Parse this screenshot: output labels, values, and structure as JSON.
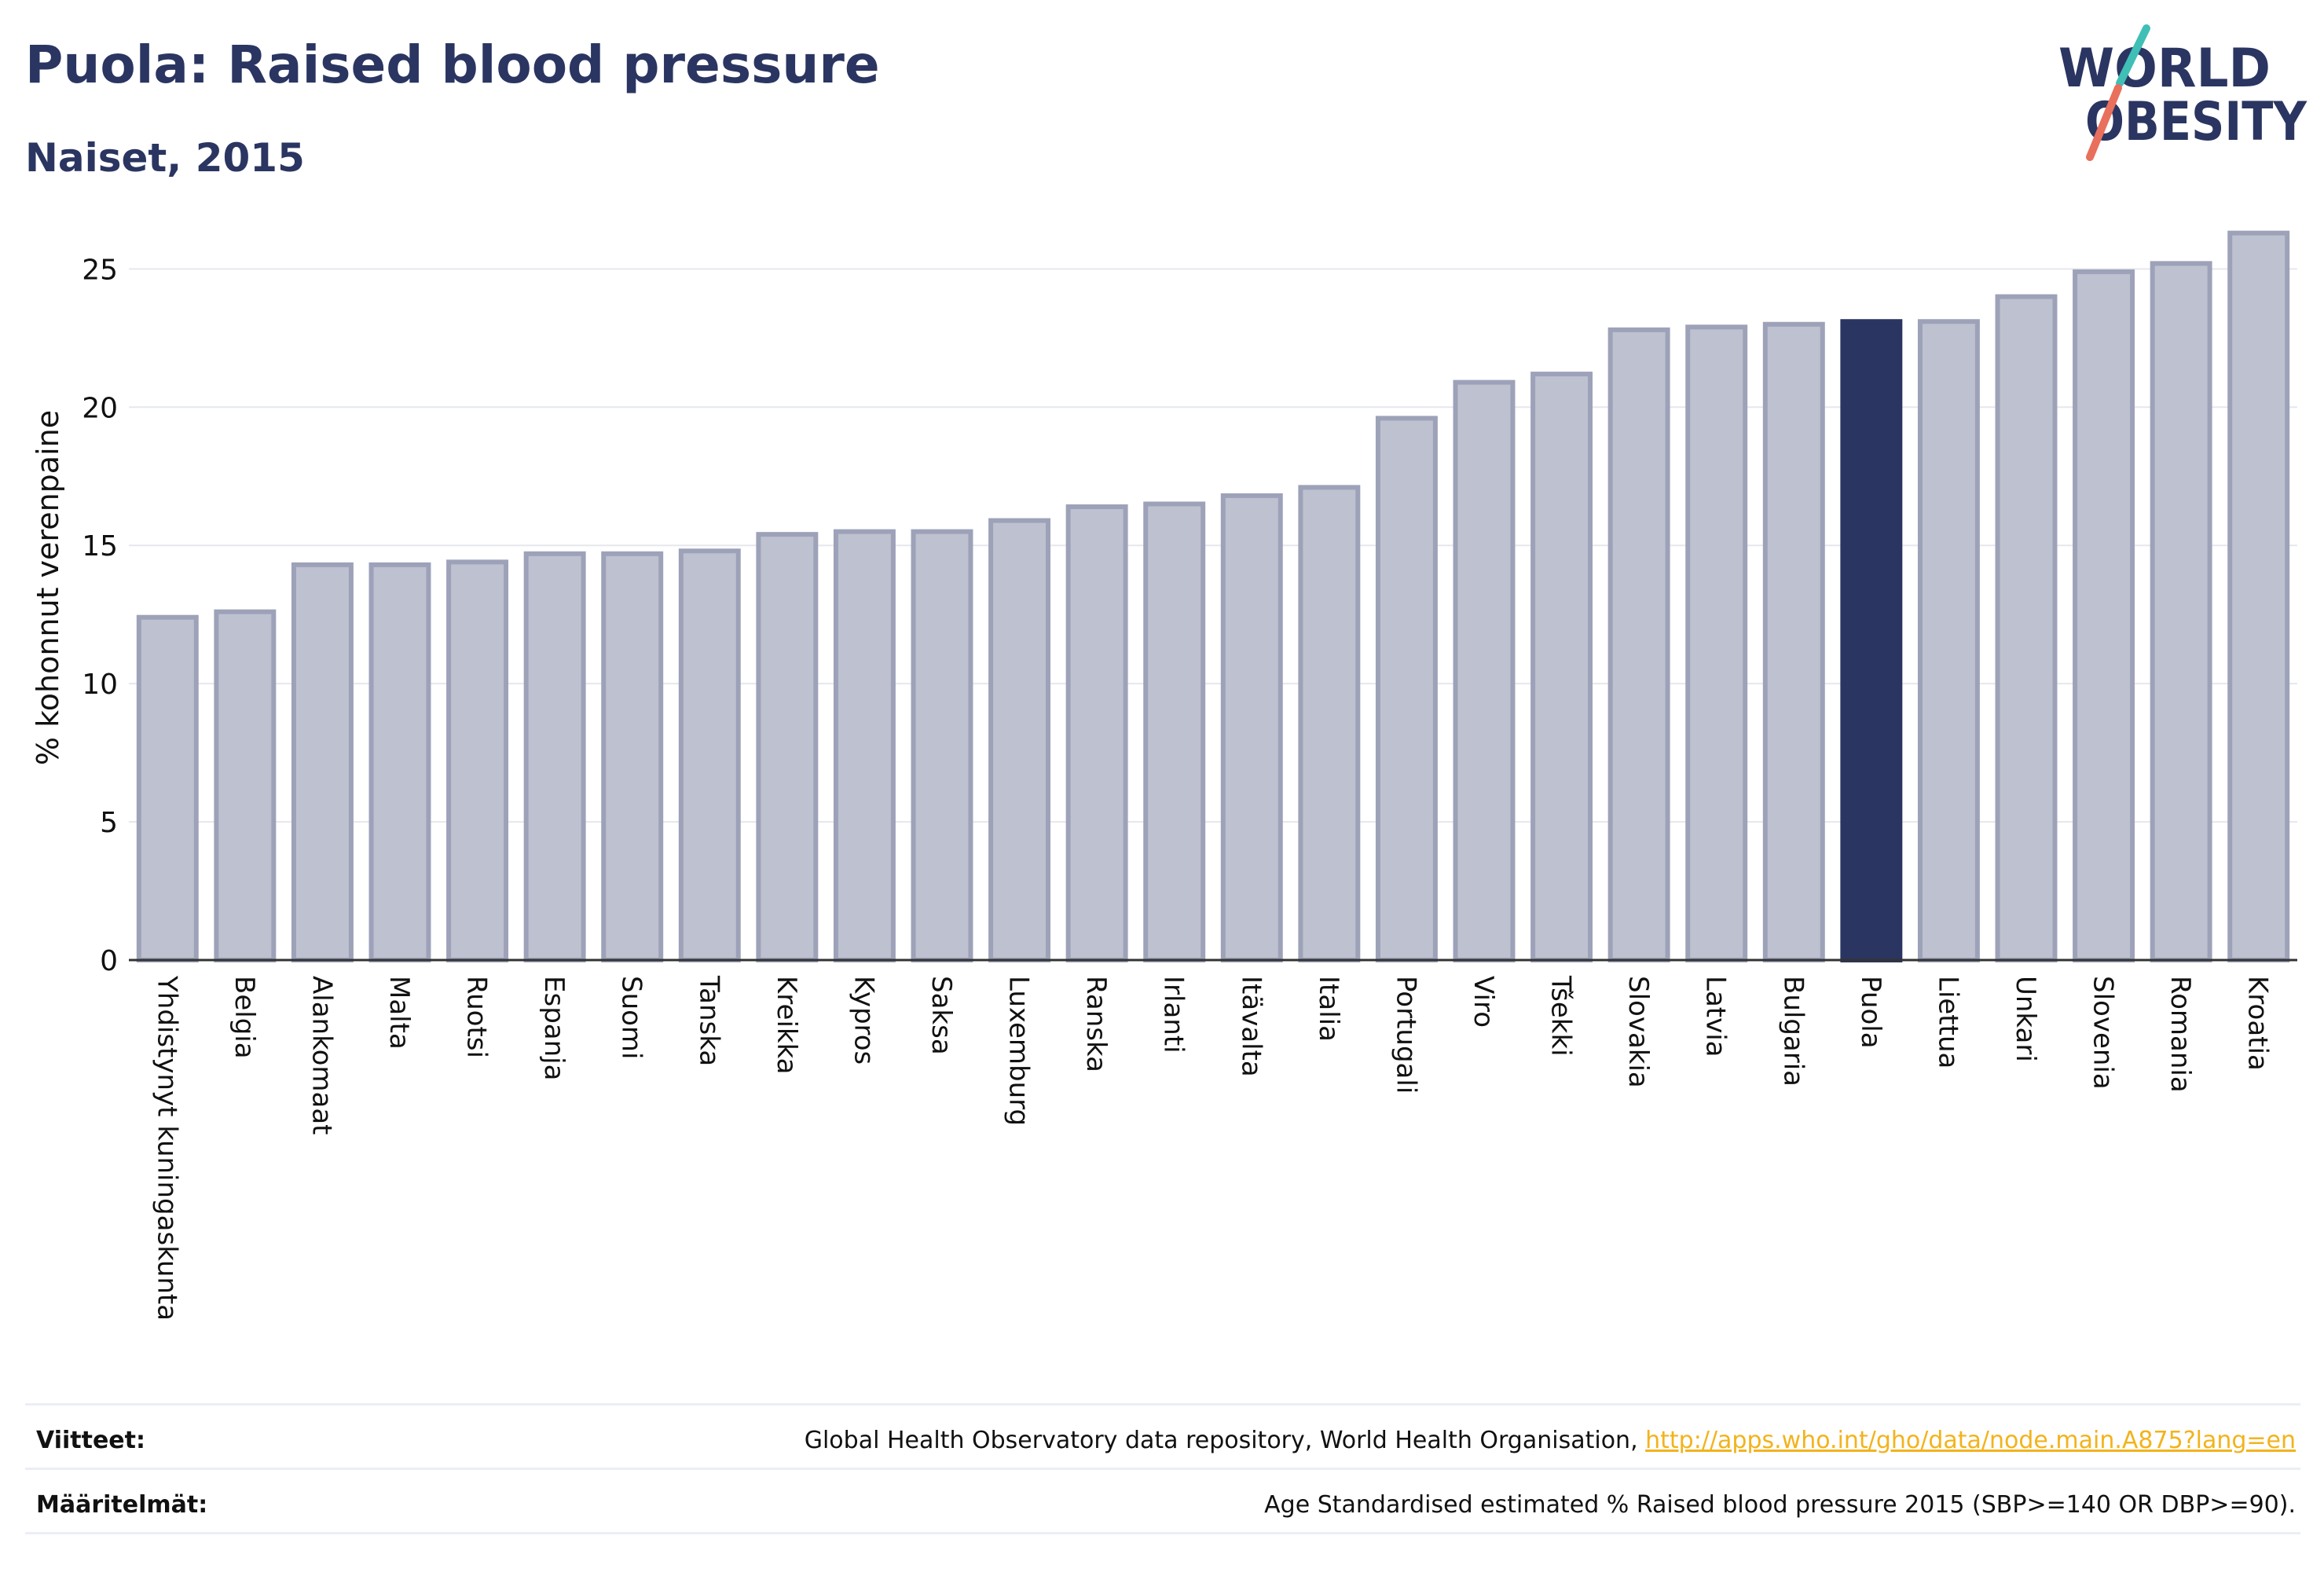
{
  "header": {
    "title": "Puola: Raised blood pressure",
    "subtitle": "Naiset, 2015"
  },
  "logo": {
    "line1": "WORLD",
    "line2": "OBESITY",
    "colors": {
      "text": "#2a3561",
      "slash_teal": "#3fbfb6",
      "slash_coral": "#e8705c"
    }
  },
  "chart_data": {
    "type": "bar",
    "ylabel": "% kohonnut verenpaine",
    "ylim": [
      0,
      27
    ],
    "yticks": [
      0,
      5,
      10,
      15,
      20,
      25
    ],
    "grid": true,
    "highlight": "Puola",
    "colors": {
      "bar": "#bec1cf",
      "bar_edge": "#9da2b9",
      "highlight": "#2a3561",
      "grid": "#e6e7ee",
      "axis": "#333333"
    },
    "categories": [
      "Yhdistynyt kuningaskunta",
      "Belgia",
      "Alankomaat",
      "Malta",
      "Ruotsi",
      "Espanja",
      "Suomi",
      "Tanska",
      "Kreikka",
      "Kypros",
      "Saksa",
      "Luxemburg",
      "Ranska",
      "Irlanti",
      "Itävalta",
      "Italia",
      "Portugali",
      "Viro",
      "Tšekki",
      "Slovakia",
      "Latvia",
      "Bulgaria",
      "Puola",
      "Liettua",
      "Unkari",
      "Slovenia",
      "Romania",
      "Kroatia"
    ],
    "values": [
      12.4,
      12.6,
      14.3,
      14.3,
      14.4,
      14.7,
      14.7,
      14.8,
      15.4,
      15.5,
      15.5,
      15.9,
      16.4,
      16.5,
      16.8,
      17.1,
      19.6,
      20.9,
      21.2,
      22.8,
      22.9,
      23.0,
      23.1,
      23.1,
      24.0,
      24.9,
      25.2,
      26.3
    ]
  },
  "footer": {
    "sources_label": "Viitteet:",
    "sources_text": "Global Health Observatory data repository, World Health Organisation, ",
    "sources_link": "http://apps.who.int/gho/data/node.main.A875?lang=en",
    "definitions_label": "Määritelmät:",
    "definitions_text": "Age Standardised estimated % Raised blood pressure 2015 (SBP>=140 OR DBP>=90)."
  }
}
